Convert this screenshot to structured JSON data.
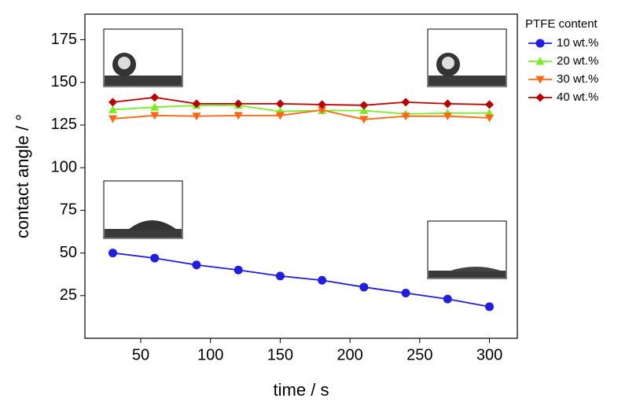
{
  "chart_data": {
    "type": "line",
    "x_label": "time / s",
    "y_label": "contact  angle / °",
    "legend_title": "PTFE content",
    "x": [
      30,
      60,
      90,
      120,
      150,
      180,
      210,
      240,
      270,
      300
    ],
    "series": [
      {
        "name": "10 wt.%",
        "color": "#1f1fdd",
        "marker": "circle",
        "values": [
          50,
          47,
          43,
          40,
          36.5,
          34,
          30,
          26.5,
          23,
          18.5
        ]
      },
      {
        "name": "20 wt.%",
        "color": "#77ee22",
        "marker": "triangle-up",
        "values": [
          134,
          135.5,
          136.5,
          136.5,
          133,
          133.5,
          133.5,
          131.5,
          132,
          132
        ]
      },
      {
        "name": "30 wt.%",
        "color": "#ff6611",
        "marker": "triangle-down",
        "values": [
          128.7,
          130.6,
          130.2,
          130.6,
          130.6,
          133.8,
          128.3,
          130.2,
          130.2,
          129.2
        ]
      },
      {
        "name": "40 wt.%",
        "color": "#bb0000",
        "marker": "diamond",
        "values": [
          138.4,
          141.2,
          137.5,
          137.5,
          137.5,
          137,
          136.6,
          138.4,
          137.5,
          137
        ]
      }
    ],
    "xlim": [
      10,
      320
    ],
    "ylim": [
      0,
      190
    ],
    "xticks": [
      50,
      100,
      150,
      200,
      250,
      300
    ],
    "yticks": [
      25,
      50,
      75,
      100,
      125,
      150,
      175
    ]
  }
}
